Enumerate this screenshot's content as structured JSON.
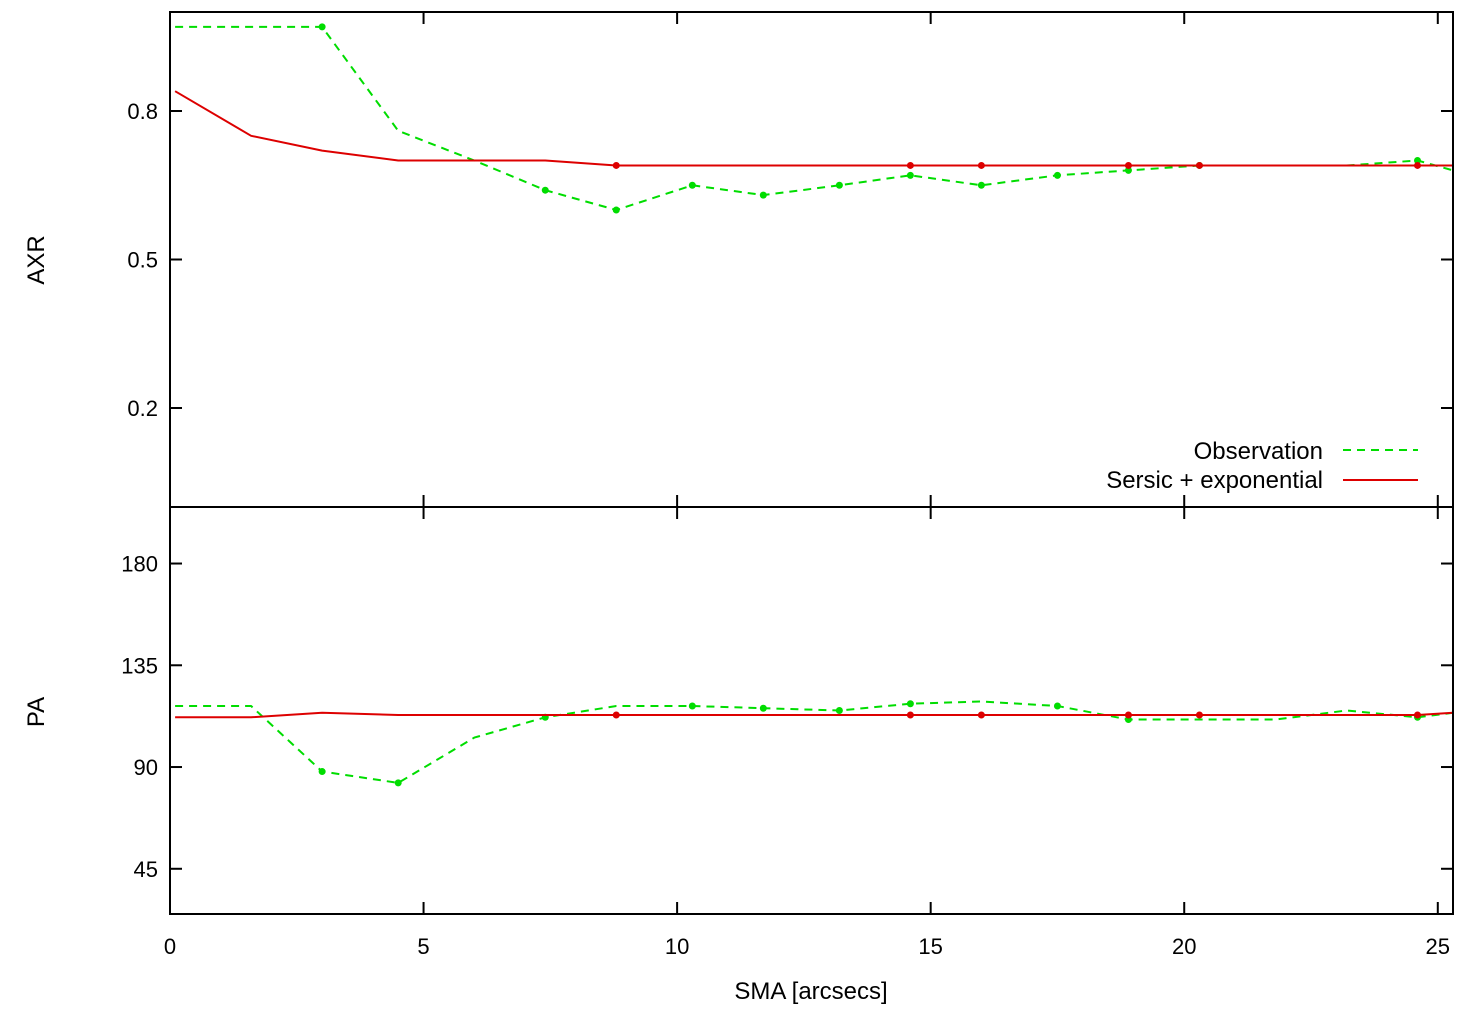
{
  "chart_data": [
    {
      "type": "line",
      "panel": "top",
      "ylabel": "AXR",
      "xlim": [
        0,
        25.3
      ],
      "ylim": [
        0.0,
        1.0
      ],
      "yticks": [
        0.2,
        0.5,
        0.8
      ],
      "legend": "bottom-right",
      "series": [
        {
          "name": "Observation",
          "color": "#00dd00",
          "style": "dashed",
          "x": [
            0.1,
            3.0,
            4.5,
            6.0,
            7.4,
            8.8,
            10.3,
            11.7,
            13.2,
            14.6,
            16.0,
            17.5,
            18.9,
            20.3,
            21.8,
            23.2,
            24.6,
            25.3
          ],
          "y": [
            0.97,
            0.97,
            0.76,
            0.7,
            0.64,
            0.6,
            0.65,
            0.63,
            0.65,
            0.67,
            0.65,
            0.67,
            0.68,
            0.69,
            0.69,
            0.69,
            0.7,
            0.68
          ],
          "markers": [
            false,
            true,
            false,
            false,
            true,
            true,
            true,
            true,
            true,
            true,
            true,
            true,
            true,
            true,
            false,
            false,
            true,
            false
          ]
        },
        {
          "name": "Sersic + exponential",
          "color": "#dd0000",
          "style": "solid",
          "x": [
            0.1,
            1.6,
            3.0,
            4.5,
            6.0,
            7.4,
            8.8,
            10.3,
            11.7,
            13.2,
            14.6,
            16.0,
            17.5,
            18.9,
            20.3,
            21.8,
            23.2,
            24.6,
            25.3
          ],
          "y": [
            0.84,
            0.75,
            0.72,
            0.7,
            0.7,
            0.7,
            0.69,
            0.69,
            0.69,
            0.69,
            0.69,
            0.69,
            0.69,
            0.69,
            0.69,
            0.69,
            0.69,
            0.69,
            0.69
          ],
          "markers": [
            false,
            false,
            false,
            false,
            false,
            false,
            true,
            false,
            false,
            false,
            true,
            true,
            false,
            true,
            true,
            false,
            false,
            true,
            false
          ]
        }
      ]
    },
    {
      "type": "line",
      "panel": "bottom",
      "ylabel": "PA",
      "xlabel": "SMA [arcsecs]",
      "xlim": [
        0,
        25.3
      ],
      "ylim": [
        25,
        205
      ],
      "xticks": [
        0,
        5,
        10,
        15,
        20,
        25
      ],
      "yticks": [
        45,
        90,
        135,
        180
      ],
      "series": [
        {
          "name": "Observation",
          "color": "#00dd00",
          "style": "dashed",
          "x": [
            0.1,
            1.6,
            3.0,
            4.5,
            6.0,
            7.4,
            8.8,
            10.3,
            11.7,
            13.2,
            14.6,
            16.0,
            17.5,
            18.9,
            20.3,
            21.8,
            23.2,
            24.6,
            25.3
          ],
          "y": [
            117,
            117,
            88,
            83,
            103,
            112,
            117,
            117,
            116,
            115,
            118,
            119,
            117,
            111,
            111,
            111,
            115,
            112,
            114
          ],
          "markers": [
            false,
            false,
            true,
            true,
            false,
            true,
            false,
            true,
            true,
            true,
            true,
            false,
            true,
            true,
            false,
            false,
            false,
            true,
            false
          ]
        },
        {
          "name": "Sersic + exponential",
          "color": "#dd0000",
          "style": "solid",
          "x": [
            0.1,
            1.6,
            3.0,
            4.5,
            6.0,
            7.4,
            8.8,
            10.3,
            11.7,
            13.2,
            14.6,
            16.0,
            17.5,
            18.9,
            20.3,
            21.8,
            23.2,
            24.6,
            25.3
          ],
          "y": [
            112,
            112,
            114,
            113,
            113,
            113,
            113,
            113,
            113,
            113,
            113,
            113,
            113,
            113,
            113,
            113,
            113,
            113,
            114
          ],
          "markers": [
            false,
            false,
            false,
            false,
            false,
            false,
            true,
            false,
            false,
            false,
            true,
            true,
            false,
            true,
            true,
            false,
            false,
            true,
            false
          ]
        }
      ]
    }
  ]
}
